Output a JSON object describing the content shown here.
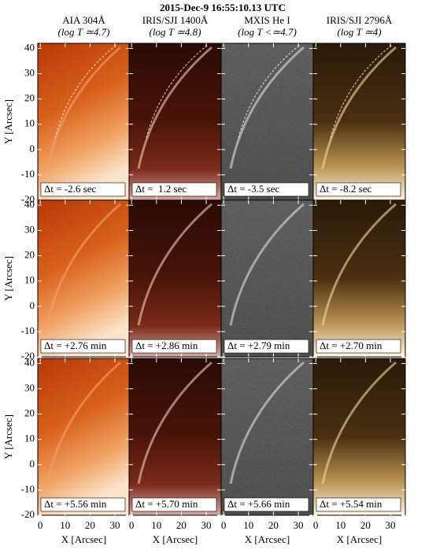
{
  "title": "2015-Dec-9 16:55:10.13 UTC",
  "columns": [
    {
      "instrument": "AIA 304Å",
      "temperature": "(log T ≃4.7)"
    },
    {
      "instrument": "IRIS/SJI 1400Å",
      "temperature": "(log T ≃4.8)"
    },
    {
      "instrument": "MXIS He I",
      "temperature": "(log T <≃4.7)"
    },
    {
      "instrument": "IRIS/SJI 2796Å",
      "temperature": "(log T ≃4)"
    }
  ],
  "rows": [
    {
      "time_offsets": [
        "Δt = -2.6 sec",
        "Δt =  1.2 sec",
        "Δt = -3.5 sec",
        "Δt = -8.2 sec"
      ]
    },
    {
      "time_offsets": [
        "Δt = +2.76 min",
        "Δt = +2.86 min",
        "Δt = +2.79 min",
        "Δt = +2.70 min"
      ]
    },
    {
      "time_offsets": [
        "Δt = +5.56 min",
        "Δt = +5.70 min",
        "Δt = +5.66 min",
        "Δt = +5.54 min"
      ]
    }
  ],
  "x_axis": {
    "label": "X [Arcsec]",
    "ticks": [
      0,
      10,
      20,
      30
    ],
    "xlim": [
      -1,
      36
    ]
  },
  "y_axis": {
    "label": "Y [Arcsec]",
    "ticks": [
      -20,
      -10,
      0,
      10,
      20,
      30,
      40
    ],
    "ylim": [
      -20,
      42
    ]
  }
}
